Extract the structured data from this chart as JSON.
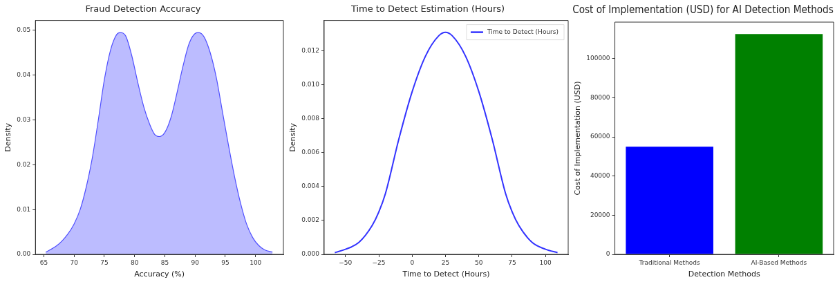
{
  "chart_data": [
    {
      "type": "area",
      "title": "Fraud Detection Accuracy",
      "xlabel": "Accuracy (%)",
      "ylabel": "Density",
      "grid": false,
      "legend": false,
      "series": [
        {
          "color": "#5050ff",
          "x": [
            65.3,
            66,
            67,
            68,
            69,
            70,
            71,
            72,
            73,
            74,
            75,
            76,
            77,
            77.6,
            78.5,
            79.5,
            80.5,
            81.5,
            82.5,
            83.3,
            84.1,
            85,
            86,
            87,
            88,
            89,
            90,
            90.6,
            91.5,
            92.5,
            93.5,
            94.5,
            95.5,
            96.5,
            97.5,
            98.5,
            99.5,
            100.5,
            101.5,
            102.8
          ],
          "values": [
            0.0005,
            0.001,
            0.0018,
            0.003,
            0.0046,
            0.0068,
            0.01,
            0.015,
            0.0215,
            0.03,
            0.039,
            0.0455,
            0.049,
            0.0495,
            0.0488,
            0.0445,
            0.0385,
            0.033,
            0.029,
            0.0268,
            0.0263,
            0.0272,
            0.0305,
            0.036,
            0.042,
            0.047,
            0.0493,
            0.0495,
            0.0485,
            0.045,
            0.0395,
            0.032,
            0.0245,
            0.0175,
            0.0115,
            0.0068,
            0.0038,
            0.002,
            0.001,
            0.0005
          ]
        }
      ],
      "xlim": [
        63.6,
        104.6
      ],
      "xticks": [
        65,
        70,
        75,
        80,
        85,
        90,
        95,
        100
      ],
      "ylim": [
        0,
        0.0522
      ],
      "yticks": [
        {
          "value": 0,
          "label": "0.00"
        },
        0.01,
        0.02,
        0.03,
        0.04,
        0.05
      ]
    },
    {
      "type": "line",
      "title": "Time to Detect Estimation (Hours)",
      "xlabel": "Time to Detect (Hours)",
      "ylabel": "Density",
      "grid": false,
      "legend": "top right",
      "series": [
        {
          "name": "Time to Detect (Hours)",
          "color": "#3333ff",
          "x": [
            -58,
            -50,
            -40,
            -30,
            -25,
            -20,
            -10,
            0,
            10,
            20,
            25,
            30,
            40,
            50,
            60,
            70,
            75,
            80,
            90,
            100,
            109
          ],
          "values": [
            0.0001,
            0.0003,
            0.0007,
            0.0017,
            0.0025,
            0.0036,
            0.0068,
            0.0096,
            0.0117,
            0.0129,
            0.0131,
            0.0129,
            0.0117,
            0.0096,
            0.0068,
            0.0036,
            0.0025,
            0.0017,
            0.0007,
            0.0003,
            0.0001
          ]
        }
      ],
      "xlim": [
        -66,
        117
      ],
      "xticks": [
        {
          "value": -50,
          "label": "−50"
        },
        {
          "value": -25,
          "label": "−25"
        },
        0,
        25,
        50,
        75,
        100
      ],
      "ylim": [
        0,
        0.0138
      ],
      "yticks": [
        {
          "value": 0,
          "label": "0.000"
        },
        {
          "value": 0.002,
          "label": "0.002"
        },
        {
          "value": 0.004,
          "label": "0.004"
        },
        {
          "value": 0.006,
          "label": "0.006"
        },
        {
          "value": 0.008,
          "label": "0.008"
        },
        {
          "value": 0.01,
          "label": "0.010"
        },
        {
          "value": 0.012,
          "label": "0.012"
        }
      ]
    },
    {
      "type": "bar",
      "title": "Cost of Implementation (USD) for AI Detection Methods",
      "xlabel": "Detection Methods",
      "ylabel": "Cost of Implementation (USD)",
      "grid": false,
      "legend": false,
      "categories": [
        "Traditional Methods",
        "AI-Based Methods"
      ],
      "values": [
        55000,
        112500
      ],
      "colors": [
        "#0000ff",
        "#008000"
      ],
      "ylim": [
        0,
        118600
      ],
      "yticks": [
        0,
        20000,
        40000,
        60000,
        80000,
        100000
      ]
    }
  ]
}
